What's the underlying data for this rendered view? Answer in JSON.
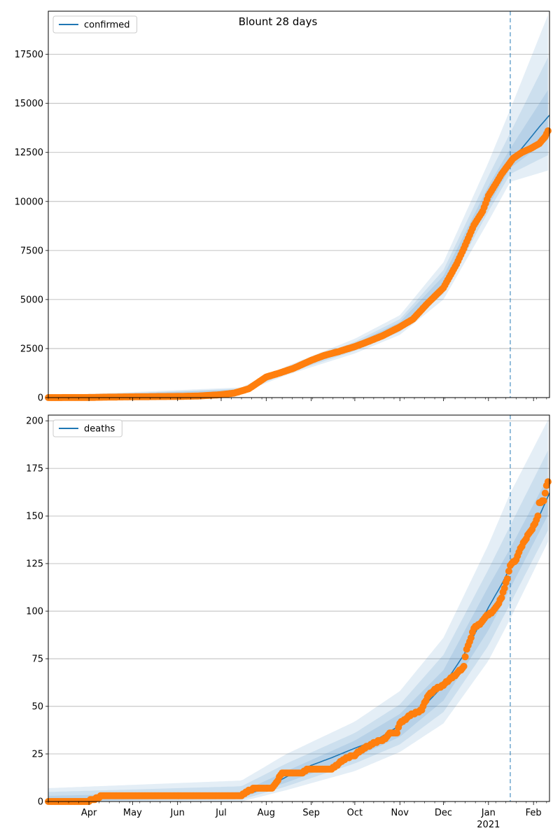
{
  "chart_data": [
    {
      "type": "line",
      "title": "Blount 28 days",
      "legend": {
        "entries": [
          "confirmed"
        ],
        "placement": "top-left"
      },
      "grid": {
        "y": true,
        "x": false
      },
      "ylim": [
        0,
        19700
      ],
      "yticks": [
        0,
        2500,
        5000,
        7500,
        10000,
        12500,
        15000,
        17500
      ],
      "x_range": [
        "2020-03-04",
        "2021-02-12"
      ],
      "forecast_start": "2021-01-16",
      "series_color": "#1f77b4",
      "observed_color": "#ff7f0e",
      "band_color": "#1f77b4",
      "median": [
        [
          "2020-03-04",
          0
        ],
        [
          "2020-03-31",
          0
        ],
        [
          "2020-04-30",
          40
        ],
        [
          "2020-05-31",
          60
        ],
        [
          "2020-06-30",
          140
        ],
        [
          "2020-07-15",
          380
        ],
        [
          "2020-08-01",
          1000
        ],
        [
          "2020-08-15",
          1350
        ],
        [
          "2020-09-01",
          1900
        ],
        [
          "2020-09-15",
          2250
        ],
        [
          "2020-10-01",
          2600
        ],
        [
          "2020-10-15",
          3000
        ],
        [
          "2020-11-01",
          3600
        ],
        [
          "2020-11-15",
          4300
        ],
        [
          "2020-12-01",
          5800
        ],
        [
          "2020-12-15",
          7800
        ],
        [
          "2021-01-01",
          10200
        ],
        [
          "2021-01-10",
          11300
        ],
        [
          "2021-01-16",
          12000
        ],
        [
          "2021-01-25",
          12800
        ],
        [
          "2021-02-05",
          13800
        ],
        [
          "2021-02-12",
          14400
        ]
      ],
      "bands": [
        {
          "lower": [
            [
              "2020-03-04",
              0
            ],
            [
              "2020-07-15",
              250
            ],
            [
              "2020-08-15",
              1150
            ],
            [
              "2020-10-01",
              2250
            ],
            [
              "2020-11-01",
              3200
            ],
            [
              "2020-12-01",
              5000
            ],
            [
              "2021-01-01",
              9000
            ],
            [
              "2021-01-16",
              11000
            ],
            [
              "2021-02-12",
              11600
            ]
          ],
          "upper": [
            [
              "2020-03-04",
              100
            ],
            [
              "2020-07-15",
              520
            ],
            [
              "2020-08-15",
              1600
            ],
            [
              "2020-10-01",
              3000
            ],
            [
              "2020-11-01",
              4200
            ],
            [
              "2020-12-01",
              6900
            ],
            [
              "2021-01-01",
              12000
            ],
            [
              "2021-01-16",
              14700
            ],
            [
              "2021-02-12",
              19700
            ]
          ]
        },
        {
          "lower": [
            [
              "2020-03-04",
              0
            ],
            [
              "2020-07-15",
              300
            ],
            [
              "2020-08-15",
              1230
            ],
            [
              "2020-10-01",
              2380
            ],
            [
              "2020-11-01",
              3350
            ],
            [
              "2020-12-01",
              5300
            ],
            [
              "2021-01-01",
              9500
            ],
            [
              "2021-01-16",
              11400
            ],
            [
              "2021-02-12",
              12400
            ]
          ],
          "upper": [
            [
              "2020-03-04",
              60
            ],
            [
              "2020-07-15",
              460
            ],
            [
              "2020-08-15",
              1500
            ],
            [
              "2020-10-01",
              2850
            ],
            [
              "2020-11-01",
              4000
            ],
            [
              "2020-12-01",
              6500
            ],
            [
              "2021-01-01",
              11300
            ],
            [
              "2021-01-16",
              13500
            ],
            [
              "2021-02-12",
              17500
            ]
          ]
        },
        {
          "lower": [
            [
              "2020-03-04",
              0
            ],
            [
              "2020-07-15",
              340
            ],
            [
              "2020-08-15",
              1290
            ],
            [
              "2020-10-01",
              2480
            ],
            [
              "2020-11-01",
              3450
            ],
            [
              "2020-12-01",
              5500
            ],
            [
              "2021-01-01",
              9800
            ],
            [
              "2021-01-16",
              11700
            ],
            [
              "2021-02-12",
              13200
            ]
          ],
          "upper": [
            [
              "2020-03-04",
              30
            ],
            [
              "2020-07-15",
              420
            ],
            [
              "2020-08-15",
              1420
            ],
            [
              "2020-10-01",
              2750
            ],
            [
              "2020-11-01",
              3850
            ],
            [
              "2020-12-01",
              6200
            ],
            [
              "2021-01-01",
              10800
            ],
            [
              "2021-01-16",
              12700
            ],
            [
              "2021-02-12",
              15800
            ]
          ]
        }
      ],
      "observed": [
        [
          "2020-03-04",
          0
        ],
        [
          "2020-03-31",
          5
        ],
        [
          "2020-04-15",
          25
        ],
        [
          "2020-05-01",
          40
        ],
        [
          "2020-05-15",
          50
        ],
        [
          "2020-06-01",
          60
        ],
        [
          "2020-06-15",
          80
        ],
        [
          "2020-07-01",
          150
        ],
        [
          "2020-07-10",
          230
        ],
        [
          "2020-07-20",
          450
        ],
        [
          "2020-08-01",
          1050
        ],
        [
          "2020-08-10",
          1250
        ],
        [
          "2020-08-20",
          1500
        ],
        [
          "2020-09-01",
          1900
        ],
        [
          "2020-09-10",
          2150
        ],
        [
          "2020-09-20",
          2350
        ],
        [
          "2020-10-01",
          2600
        ],
        [
          "2020-10-10",
          2850
        ],
        [
          "2020-10-20",
          3150
        ],
        [
          "2020-11-01",
          3600
        ],
        [
          "2020-11-10",
          4000
        ],
        [
          "2020-11-20",
          4800
        ],
        [
          "2020-12-01",
          5600
        ],
        [
          "2020-12-10",
          6800
        ],
        [
          "2020-12-15",
          7600
        ],
        [
          "2020-12-22",
          8800
        ],
        [
          "2020-12-28",
          9500
        ],
        [
          "2021-01-01",
          10300
        ],
        [
          "2021-01-06",
          10900
        ],
        [
          "2021-01-10",
          11400
        ],
        [
          "2021-01-14",
          11800
        ],
        [
          "2021-01-18",
          12200
        ],
        [
          "2021-01-24",
          12500
        ],
        [
          "2021-01-30",
          12700
        ],
        [
          "2021-02-05",
          12950
        ],
        [
          "2021-02-09",
          13300
        ],
        [
          "2021-02-11",
          13600
        ]
      ]
    },
    {
      "type": "line",
      "title": "",
      "legend": {
        "entries": [
          "deaths"
        ],
        "placement": "top-left"
      },
      "grid": {
        "y": true,
        "x": false
      },
      "ylim": [
        0,
        203
      ],
      "yticks": [
        0,
        25,
        50,
        75,
        100,
        125,
        150,
        175,
        200
      ],
      "x_range": [
        "2020-03-04",
        "2021-02-12"
      ],
      "forecast_start": "2021-01-16",
      "series_color": "#1f77b4",
      "observed_color": "#ff7f0e",
      "band_color": "#1f77b4",
      "xticks": [
        {
          "date": "2020-04-01",
          "label": "Apr"
        },
        {
          "date": "2020-05-01",
          "label": "May"
        },
        {
          "date": "2020-06-01",
          "label": "Jun"
        },
        {
          "date": "2020-07-01",
          "label": "Jul"
        },
        {
          "date": "2020-08-01",
          "label": "Aug"
        },
        {
          "date": "2020-09-01",
          "label": "Sep"
        },
        {
          "date": "2020-10-01",
          "label": "Oct"
        },
        {
          "date": "2020-11-01",
          "label": "Nov"
        },
        {
          "date": "2020-12-01",
          "label": "Dec"
        },
        {
          "date": "2021-01-01",
          "label": "Jan"
        },
        {
          "date": "2021-02-01",
          "label": "Feb"
        }
      ],
      "xtick_sublabel": {
        "date": "2021-01-01",
        "label": "2021"
      },
      "median": [
        [
          "2020-03-04",
          0
        ],
        [
          "2020-03-31",
          1
        ],
        [
          "2020-04-10",
          3
        ],
        [
          "2020-07-15",
          3
        ],
        [
          "2020-08-01",
          7
        ],
        [
          "2020-08-15",
          13
        ],
        [
          "2020-09-01",
          19
        ],
        [
          "2020-09-15",
          23
        ],
        [
          "2020-10-01",
          28
        ],
        [
          "2020-10-15",
          32
        ],
        [
          "2020-11-01",
          40
        ],
        [
          "2020-11-15",
          48
        ],
        [
          "2020-12-01",
          61
        ],
        [
          "2020-12-15",
          77
        ],
        [
          "2021-01-01",
          102
        ],
        [
          "2021-01-10",
          114
        ],
        [
          "2021-01-16",
          123
        ],
        [
          "2021-01-25",
          135
        ],
        [
          "2021-02-05",
          150
        ],
        [
          "2021-02-12",
          162
        ]
      ],
      "bands": [
        {
          "lower": [
            [
              "2020-03-04",
              0
            ],
            [
              "2020-07-15",
              0
            ],
            [
              "2020-08-15",
              6
            ],
            [
              "2020-10-01",
              16
            ],
            [
              "2020-11-01",
              26
            ],
            [
              "2020-12-01",
              41
            ],
            [
              "2021-01-01",
              74
            ],
            [
              "2021-01-16",
              96
            ],
            [
              "2021-02-12",
              138
            ]
          ],
          "upper": [
            [
              "2020-03-04",
              7
            ],
            [
              "2020-07-15",
              11
            ],
            [
              "2020-08-15",
              25
            ],
            [
              "2020-10-01",
              42
            ],
            [
              "2020-11-01",
              58
            ],
            [
              "2020-12-01",
              86
            ],
            [
              "2021-01-01",
              135
            ],
            [
              "2021-01-16",
              162
            ],
            [
              "2021-02-12",
              202
            ]
          ]
        },
        {
          "lower": [
            [
              "2020-03-04",
              0
            ],
            [
              "2020-07-15",
              1
            ],
            [
              "2020-08-15",
              8
            ],
            [
              "2020-10-01",
              20
            ],
            [
              "2020-11-01",
              30
            ],
            [
              "2020-12-01",
              47
            ],
            [
              "2021-01-01",
              82
            ],
            [
              "2021-01-16",
              104
            ],
            [
              "2021-02-12",
              144
            ]
          ],
          "upper": [
            [
              "2020-03-04",
              5
            ],
            [
              "2020-07-15",
              8
            ],
            [
              "2020-08-15",
              20
            ],
            [
              "2020-10-01",
              36
            ],
            [
              "2020-11-01",
              51
            ],
            [
              "2020-12-01",
              77
            ],
            [
              "2021-01-01",
              122
            ],
            [
              "2021-01-16",
              145
            ],
            [
              "2021-02-12",
              186
            ]
          ]
        },
        {
          "lower": [
            [
              "2020-03-04",
              0
            ],
            [
              "2020-07-15",
              2
            ],
            [
              "2020-08-15",
              10
            ],
            [
              "2020-10-01",
              23
            ],
            [
              "2020-11-01",
              34
            ],
            [
              "2020-12-01",
              53
            ],
            [
              "2021-01-01",
              90
            ],
            [
              "2021-01-16",
              112
            ],
            [
              "2021-02-12",
              152
            ]
          ],
          "upper": [
            [
              "2020-03-04",
              3
            ],
            [
              "2020-07-15",
              5
            ],
            [
              "2020-08-15",
              16
            ],
            [
              "2020-10-01",
              32
            ],
            [
              "2020-11-01",
              46
            ],
            [
              "2020-12-01",
              69
            ],
            [
              "2021-01-01",
              113
            ],
            [
              "2021-01-16",
              133
            ],
            [
              "2021-02-12",
              172
            ]
          ]
        }
      ],
      "observed": [
        [
          "2020-03-04",
          0
        ],
        [
          "2020-03-20",
          0
        ],
        [
          "2020-03-31",
          0
        ],
        [
          "2020-04-07",
          2
        ],
        [
          "2020-04-10",
          3
        ],
        [
          "2020-05-01",
          3
        ],
        [
          "2020-06-01",
          3
        ],
        [
          "2020-07-01",
          3
        ],
        [
          "2020-07-15",
          3
        ],
        [
          "2020-07-20",
          6
        ],
        [
          "2020-07-25",
          7
        ],
        [
          "2020-08-05",
          7
        ],
        [
          "2020-08-08",
          10
        ],
        [
          "2020-08-12",
          15
        ],
        [
          "2020-08-25",
          15
        ],
        [
          "2020-08-30",
          17
        ],
        [
          "2020-09-15",
          17
        ],
        [
          "2020-09-20",
          20
        ],
        [
          "2020-09-25",
          23
        ],
        [
          "2020-10-01",
          24
        ],
        [
          "2020-10-05",
          27
        ],
        [
          "2020-10-10",
          29
        ],
        [
          "2020-10-15",
          31
        ],
        [
          "2020-10-22",
          33
        ],
        [
          "2020-10-25",
          36
        ],
        [
          "2020-10-30",
          36
        ],
        [
          "2020-11-01",
          41
        ],
        [
          "2020-11-06",
          44
        ],
        [
          "2020-11-10",
          46
        ],
        [
          "2020-11-16",
          48
        ],
        [
          "2020-11-20",
          55
        ],
        [
          "2020-11-25",
          59
        ],
        [
          "2020-12-01",
          61
        ],
        [
          "2020-12-05",
          64
        ],
        [
          "2020-12-10",
          67
        ],
        [
          "2020-12-15",
          71
        ],
        [
          "2020-12-17",
          80
        ],
        [
          "2020-12-20",
          86
        ],
        [
          "2020-12-22",
          91
        ],
        [
          "2020-12-26",
          93
        ],
        [
          "2020-12-30",
          97
        ],
        [
          "2021-01-03",
          99
        ],
        [
          "2021-01-07",
          103
        ],
        [
          "2021-01-10",
          107
        ],
        [
          "2021-01-12",
          112
        ],
        [
          "2021-01-14",
          117
        ],
        [
          "2021-01-16",
          124
        ],
        [
          "2021-01-20",
          127
        ],
        [
          "2021-01-22",
          131
        ],
        [
          "2021-01-26",
          137
        ],
        [
          "2021-01-30",
          142
        ],
        [
          "2021-02-02",
          146
        ],
        [
          "2021-02-04",
          150
        ],
        [
          "2021-02-05",
          157
        ],
        [
          "2021-02-08",
          158
        ],
        [
          "2021-02-09",
          162
        ],
        [
          "2021-02-10",
          166
        ],
        [
          "2021-02-11",
          168
        ]
      ]
    }
  ]
}
